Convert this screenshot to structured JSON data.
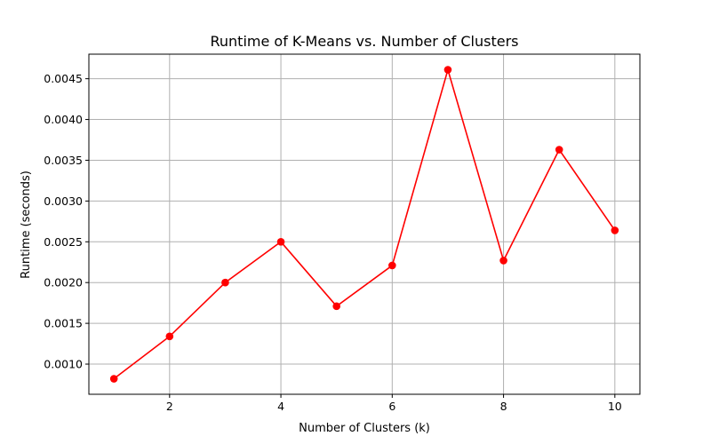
{
  "chart_data": {
    "type": "line",
    "title": "Runtime of K-Means vs. Number of Clusters",
    "xlabel": "Number of Clusters (k)",
    "ylabel": "Runtime (seconds)",
    "x": [
      1,
      2,
      3,
      4,
      5,
      6,
      7,
      8,
      9,
      10
    ],
    "series": [
      {
        "values": [
          0.00082,
          0.00134,
          0.002,
          0.0025,
          0.00171,
          0.00221,
          0.00461,
          0.00227,
          0.00363,
          0.00264
        ],
        "color": "#ff0000",
        "marker": "circle"
      }
    ],
    "xticks": [
      2,
      4,
      6,
      8,
      10
    ],
    "xtick_labels": [
      "2",
      "4",
      "6",
      "8",
      "10"
    ],
    "yticks": [
      0.001,
      0.0015,
      0.002,
      0.0025,
      0.003,
      0.0035,
      0.004,
      0.0045
    ],
    "ytick_labels": [
      "0.0010",
      "0.0015",
      "0.0020",
      "0.0025",
      "0.0030",
      "0.0035",
      "0.0040",
      "0.0045"
    ],
    "xlim": [
      0.55,
      10.45
    ],
    "ylim": [
      0.00063,
      0.004801
    ],
    "grid": true,
    "legend": "none"
  }
}
